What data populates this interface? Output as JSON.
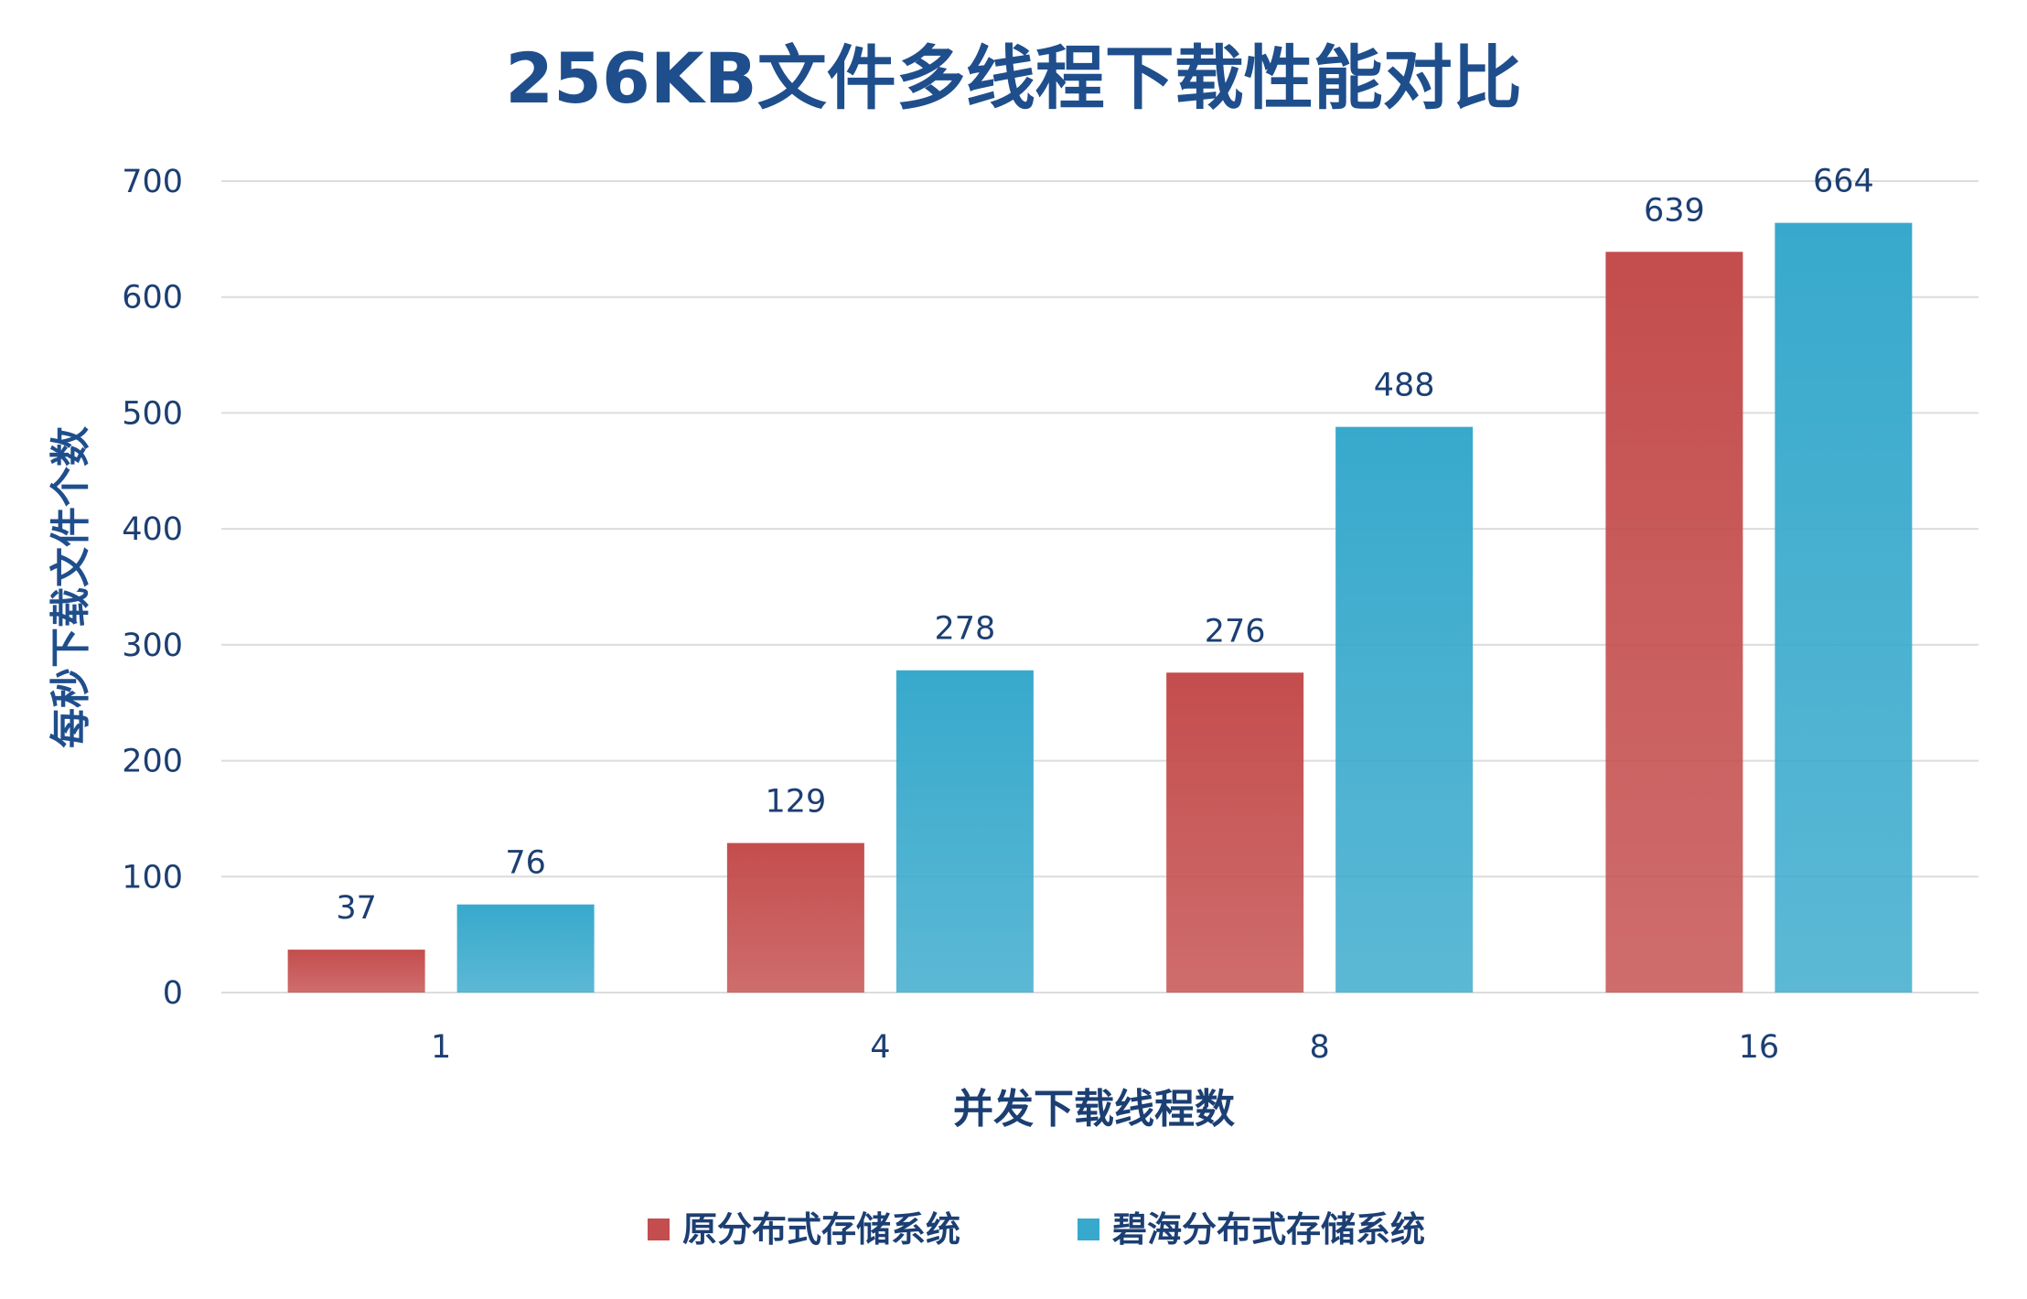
{
  "chart_data": {
    "type": "bar",
    "title": "256KB文件多线程下载性能对比",
    "xlabel": "并发下载线程数",
    "ylabel": "每秒下载文件个数",
    "categories": [
      "1",
      "4",
      "8",
      "16"
    ],
    "series": [
      {
        "name": "原分布式存储系统",
        "values": [
          37,
          129,
          276,
          639
        ],
        "color": "#c44d4d"
      },
      {
        "name": "碧海分布式存储系统",
        "values": [
          76,
          278,
          488,
          664
        ],
        "color": "#38a9cc"
      }
    ],
    "ylim": [
      0,
      700
    ],
    "yticks": [
      0,
      100,
      200,
      300,
      400,
      500,
      600,
      700
    ],
    "grid": true,
    "legend": "bottom",
    "colors": {
      "title": "#1f4e8c",
      "axis_text": "#1c3f73",
      "grid": "#dcdcdc"
    }
  }
}
